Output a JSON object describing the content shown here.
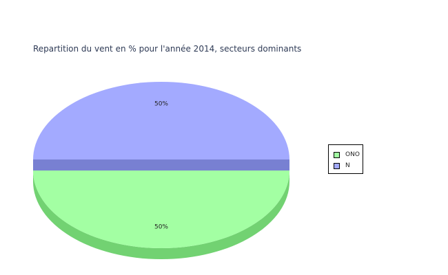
{
  "chart_data": {
    "type": "pie",
    "title": "Repartition du vent en % pour l'année 2014, secteurs dominants",
    "categories": [
      "ONO",
      "N"
    ],
    "values": [
      50,
      50
    ],
    "labels": [
      "50%",
      "50%"
    ],
    "colors": {
      "ONO": {
        "top": "#a3ffa3",
        "side": "#72d272"
      },
      "N": {
        "top": "#a3aaff",
        "side": "#7880d2"
      }
    },
    "style": "3d-exploded",
    "legend": {
      "placement": "right",
      "entries": [
        "ONO",
        "N"
      ]
    }
  }
}
